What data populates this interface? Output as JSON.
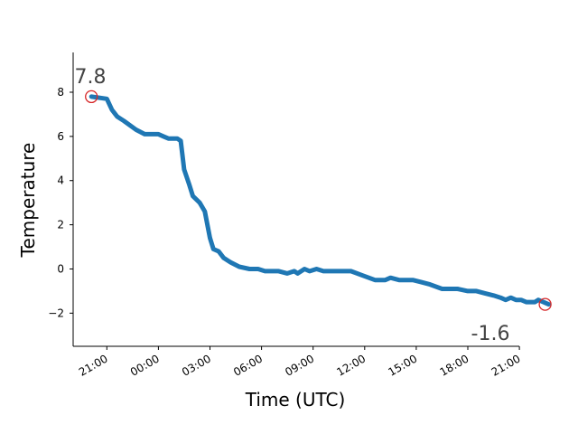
{
  "chart_data": {
    "type": "line",
    "xlabel": "Time (UTC)",
    "ylabel": "Temperature",
    "x_ticks": [
      "21:00",
      "00:00",
      "03:00",
      "06:00",
      "09:00",
      "12:00",
      "15:00",
      "18:00",
      "21:00"
    ],
    "y_ticks": [
      "−2",
      "0",
      "2",
      "4",
      "6",
      "8"
    ],
    "ylim": [
      -3.5,
      9.8
    ],
    "x_range_hours": [
      -2.0,
      24.3
    ],
    "grid": false,
    "line_color": "#1f77b4",
    "marker_color": "#d62728",
    "annotations": {
      "start_label": "7.8",
      "end_label": "-1.6"
    },
    "series": [
      {
        "values": [
          [
            -0.9,
            7.8
          ],
          [
            0.0,
            7.7
          ],
          [
            0.3,
            7.2
          ],
          [
            0.6,
            6.9
          ],
          [
            1.0,
            6.7
          ],
          [
            1.7,
            6.3
          ],
          [
            2.2,
            6.1
          ],
          [
            3.0,
            6.1
          ],
          [
            3.3,
            6.0
          ],
          [
            3.6,
            5.9
          ],
          [
            3.9,
            5.9
          ],
          [
            4.1,
            5.9
          ],
          [
            4.3,
            5.8
          ],
          [
            4.5,
            4.5
          ],
          [
            4.8,
            3.8
          ],
          [
            5.0,
            3.3
          ],
          [
            5.4,
            3.0
          ],
          [
            5.7,
            2.6
          ],
          [
            6.0,
            1.4
          ],
          [
            6.2,
            0.9
          ],
          [
            6.5,
            0.8
          ],
          [
            6.8,
            0.5
          ],
          [
            7.2,
            0.3
          ],
          [
            7.7,
            0.1
          ],
          [
            8.3,
            0.0
          ],
          [
            8.8,
            0.0
          ],
          [
            9.2,
            -0.1
          ],
          [
            10.0,
            -0.1
          ],
          [
            10.5,
            -0.2
          ],
          [
            10.9,
            -0.1
          ],
          [
            11.1,
            -0.2
          ],
          [
            11.5,
            0.0
          ],
          [
            11.8,
            -0.1
          ],
          [
            12.2,
            0.0
          ],
          [
            12.6,
            -0.1
          ],
          [
            13.2,
            -0.1
          ],
          [
            13.8,
            -0.1
          ],
          [
            14.2,
            -0.1
          ],
          [
            14.9,
            -0.3
          ],
          [
            15.6,
            -0.5
          ],
          [
            16.2,
            -0.5
          ],
          [
            16.5,
            -0.4
          ],
          [
            17.0,
            -0.5
          ],
          [
            17.8,
            -0.5
          ],
          [
            18.3,
            -0.6
          ],
          [
            18.8,
            -0.7
          ],
          [
            19.5,
            -0.9
          ],
          [
            20.4,
            -0.9
          ],
          [
            21.0,
            -1.0
          ],
          [
            21.5,
            -1.0
          ],
          [
            22.0,
            -1.1
          ],
          [
            22.5,
            -1.2
          ],
          [
            22.9,
            -1.3
          ],
          [
            23.2,
            -1.4
          ],
          [
            23.5,
            -1.3
          ],
          [
            23.8,
            -1.4
          ],
          [
            24.1,
            -1.4
          ],
          [
            24.4,
            -1.5
          ],
          [
            24.7,
            -1.5
          ],
          [
            24.9,
            -1.5
          ],
          [
            25.1,
            -1.4
          ],
          [
            25.4,
            -1.5
          ],
          [
            25.7,
            -1.6
          ]
        ]
      }
    ],
    "highlight_points": [
      [
        -0.9,
        7.8
      ],
      [
        25.5,
        -1.6
      ]
    ]
  }
}
